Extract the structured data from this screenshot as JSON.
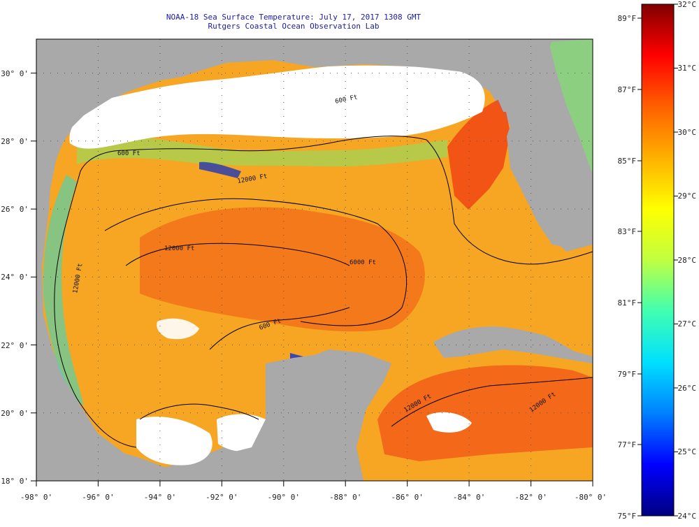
{
  "title": {
    "line1": "NOAA-18 Sea Surface Temperature:  July 17, 2017 1308 GMT",
    "line2": "Rutgers Coastal Ocean Observation Lab"
  },
  "map": {
    "region": "Gulf of Mexico",
    "lon_range": [
      -98,
      -80
    ],
    "lat_range": [
      18,
      31
    ],
    "x_ticks": [
      {
        "value": -98,
        "label": "-98° 0'"
      },
      {
        "value": -96,
        "label": "-96° 0'"
      },
      {
        "value": -94,
        "label": "-94° 0'"
      },
      {
        "value": -92,
        "label": "-92° 0'"
      },
      {
        "value": -90,
        "label": "-90° 0'"
      },
      {
        "value": -88,
        "label": "-88° 0'"
      },
      {
        "value": -86,
        "label": "-86° 0'"
      },
      {
        "value": -84,
        "label": "-84° 0'"
      },
      {
        "value": -82,
        "label": "-82° 0'"
      },
      {
        "value": -80,
        "label": "-80° 0'"
      }
    ],
    "y_ticks": [
      {
        "value": 18,
        "label": "18° 0'"
      },
      {
        "value": 20,
        "label": "20° 0'"
      },
      {
        "value": 22,
        "label": "22° 0'"
      },
      {
        "value": 24,
        "label": "24° 0'"
      },
      {
        "value": 26,
        "label": "26° 0'"
      },
      {
        "value": 28,
        "label": "28° 0'"
      },
      {
        "value": 30,
        "label": "30° 0'"
      }
    ],
    "grid": "dotted",
    "contour_labels": [
      "600 Ft",
      "600 Ft",
      "12000 Ft",
      "12000 Ft",
      "12000 Ft",
      "6000 Ft",
      "600 Ft",
      "12000 Ft",
      "12000 Ft"
    ],
    "colors": {
      "land": "#a9a9a9",
      "cloud": "#ffffff",
      "contour": "#000000"
    }
  },
  "colorbar": {
    "celsius_range": [
      24,
      32
    ],
    "fahrenheit_range": [
      75,
      89
    ],
    "celsius_labels": [
      "32°C",
      "31°C",
      "30°C",
      "29°C",
      "28°C",
      "27°C",
      "26°C",
      "25°C",
      "24°C"
    ],
    "fahrenheit_labels": [
      "89°F",
      "87°F",
      "85°F",
      "83°F",
      "81°F",
      "79°F",
      "77°F",
      "75°F"
    ],
    "stops": [
      "#000080",
      "#0000ff",
      "#0080ff",
      "#00e0ff",
      "#40ffb0",
      "#c0ff40",
      "#ffff00",
      "#ffb000",
      "#ff6000",
      "#ff0000",
      "#800000"
    ]
  }
}
